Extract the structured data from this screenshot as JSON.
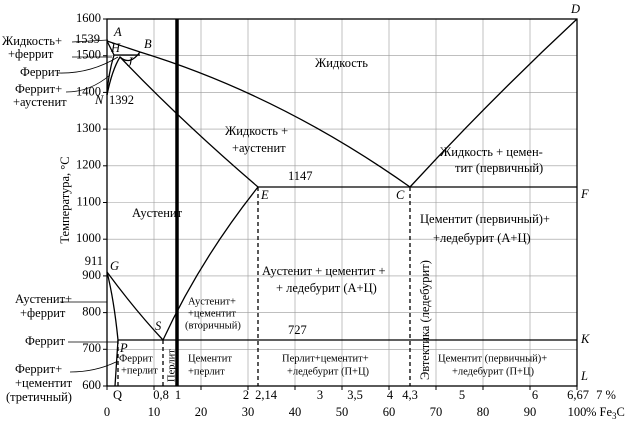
{
  "y_axis": {
    "title": "Температура, °C",
    "ticks": [
      "1600",
      "1500",
      "1400",
      "1300",
      "1200",
      "1100",
      "1000",
      "900",
      "800",
      "700",
      "600"
    ]
  },
  "x_axis_fe3c": {
    "ticks": [
      "0",
      "10",
      "20",
      "30",
      "40",
      "50",
      "60",
      "70",
      "80",
      "90",
      "100"
    ],
    "unit": "% Fe",
    "unit_sub": "3",
    "unit_end": "C"
  },
  "x_axis_carbon": {
    "ticks": [
      "0,8",
      "1",
      "2",
      "2,14",
      "3",
      "3,5",
      "4",
      "4,3",
      "5",
      "6",
      "6,67",
      "7 %"
    ]
  },
  "temperatures": {
    "t1539": "1539",
    "t1392": "1392",
    "t911": "911",
    "t1147": "1147",
    "t727": "727"
  },
  "points": {
    "A": "A",
    "H": "H",
    "B": "B",
    "J": "J",
    "N": "N",
    "D": "D",
    "E": "E",
    "C": "C",
    "F": "F",
    "G": "G",
    "S": "S",
    "P": "P",
    "K": "K",
    "L": "L",
    "Q": "Q"
  },
  "regions": {
    "liquid_ferrite": [
      "Жидкость+",
      "+феррит"
    ],
    "ferrite_top": "Феррит",
    "ferrite_austenite": [
      "Феррит+",
      "+аустенит"
    ],
    "liquid": "Жидкость",
    "liquid_austenite": [
      "Жидкость +",
      "+аустенит"
    ],
    "liquid_cementite": [
      "Жидкость + цемен-",
      "тит (первичный)"
    ],
    "austenite": "Аустенит",
    "cementite_ledeburite_ac": [
      "Цементит (первичный)+",
      "+ледебурит (А+Ц)"
    ],
    "austenite_cementite_ledeburite": [
      "Аустенит + цементит +",
      "+ ледебурит (А+Ц)"
    ],
    "austenite_cementite_secondary": [
      "Аустенит+",
      "+цементит",
      "(вторичный)"
    ],
    "austenite_ferrite": [
      "Аустенит+",
      "+феррит"
    ],
    "ferrite_mid": "Феррит",
    "ferrite_cementite_tertiary": [
      "Феррит+",
      "+цементит",
      "(третичный)"
    ],
    "ferrite_pearlite": [
      "Феррит",
      "+перлит"
    ],
    "pearlite": "Перлит",
    "cementite_pearlite": [
      "Цементит",
      "+перлит"
    ],
    "pearlite_cementite_ledeburite": [
      "Перлит+цементит+",
      "+ледебурит (П+Ц)"
    ],
    "cementite_ledeburite_pc": [
      "Цементит (первичный)+",
      "+ледебурит (П+Ц)"
    ],
    "eutectic": "Эвтектика (ледебурит)"
  }
}
